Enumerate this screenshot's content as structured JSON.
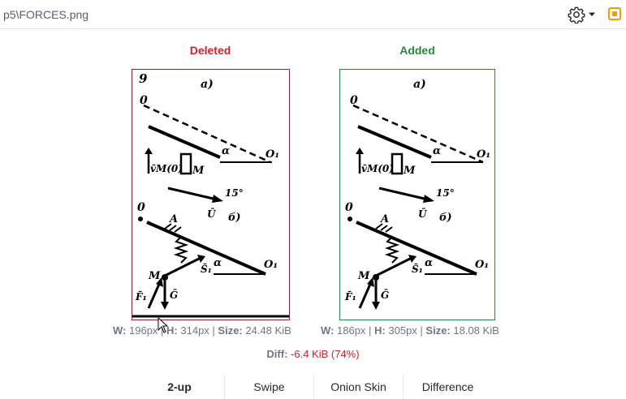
{
  "header": {
    "file_path": "p5\\FORCES.png",
    "icons": [
      "gear-icon",
      "chevron-down-icon",
      "toggle-panel-icon"
    ]
  },
  "deleted": {
    "label": "Deleted",
    "w_key": "W:",
    "w_val": "196px",
    "h_key": "H:",
    "h_val": "314px",
    "size_key": "Size:",
    "size_val": "24.48 KiB",
    "color": "#cf222e",
    "figure_labels": [
      "9",
      "a)",
      "0",
      "α",
      "O₁",
      "v̄M(0)",
      "M",
      "15°",
      "Ū",
      "б)",
      "0",
      "A",
      "α",
      "O₁",
      "S̄₁",
      "M",
      "F̄₁",
      "Ḡ"
    ]
  },
  "added": {
    "label": "Added",
    "w_key": "W:",
    "w_val": "186px",
    "h_key": "H:",
    "h_val": "305px",
    "size_key": "Size:",
    "size_val": "18.08 KiB",
    "color": "#2e8540",
    "figure_labels": [
      "a)",
      "0",
      "α",
      "O₁",
      "v̄M(0)",
      "M",
      "15°",
      "Ū",
      "б)",
      "0",
      "A",
      "α",
      "O₁",
      "S̄₁",
      "M",
      "F̄₁",
      "Ḡ"
    ]
  },
  "diff": {
    "key": "Diff:",
    "value": "-6.4 KiB (74%)"
  },
  "tabs": [
    {
      "label": "2-up",
      "active": true
    },
    {
      "label": "Swipe",
      "active": false
    },
    {
      "label": "Onion Skin",
      "active": false
    },
    {
      "label": "Difference",
      "active": false
    }
  ]
}
